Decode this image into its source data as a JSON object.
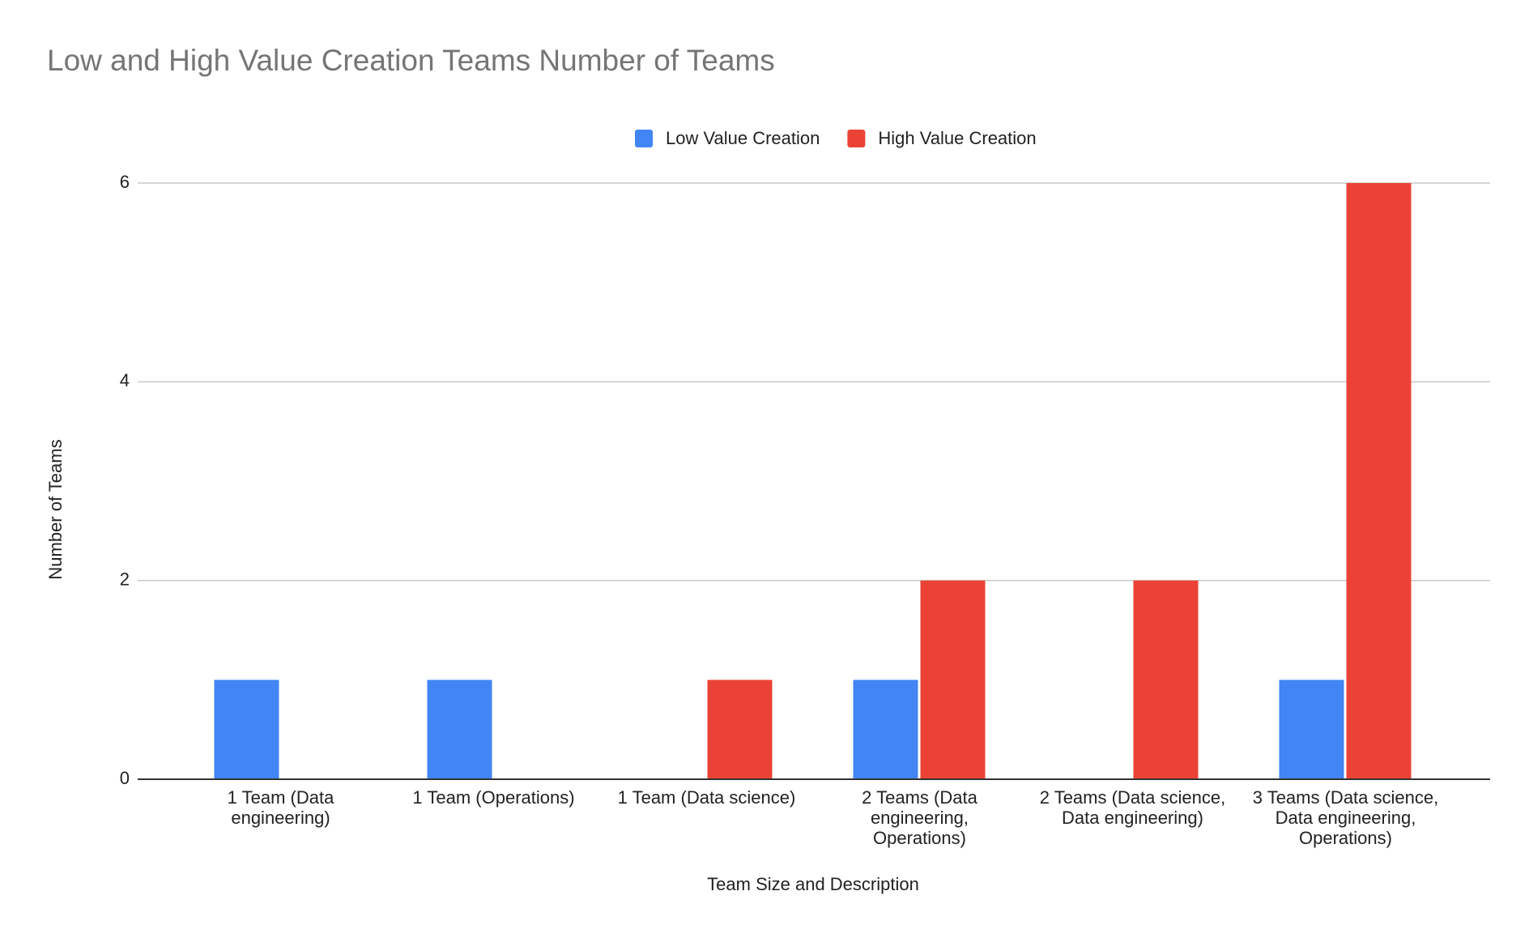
{
  "chart_data": {
    "type": "bar",
    "title": "Low and High Value Creation Teams Number of Teams",
    "x_label": "Team Size and Description",
    "y_label": "Number of Teams",
    "categories": [
      "1 Team (Data engineering)",
      "1 Team (Operations)",
      "1 Team (Data science)",
      "2 Teams (Data engineering, Operations)",
      "2 Teams (Data science, Data engineering)",
      "3 Teams (Data science, Data engineering, Operations)"
    ],
    "series": [
      {
        "name": "Low Value Creation",
        "color": "#4285f4",
        "values": [
          1,
          1,
          0,
          1,
          0,
          1
        ]
      },
      {
        "name": "High Value Creation",
        "color": "#ea4335",
        "values": [
          0,
          0,
          1,
          2,
          2,
          6
        ]
      }
    ],
    "ylim": [
      0,
      6
    ],
    "yticks": [
      0,
      2,
      4,
      6
    ],
    "grid": true,
    "legend": "top"
  }
}
